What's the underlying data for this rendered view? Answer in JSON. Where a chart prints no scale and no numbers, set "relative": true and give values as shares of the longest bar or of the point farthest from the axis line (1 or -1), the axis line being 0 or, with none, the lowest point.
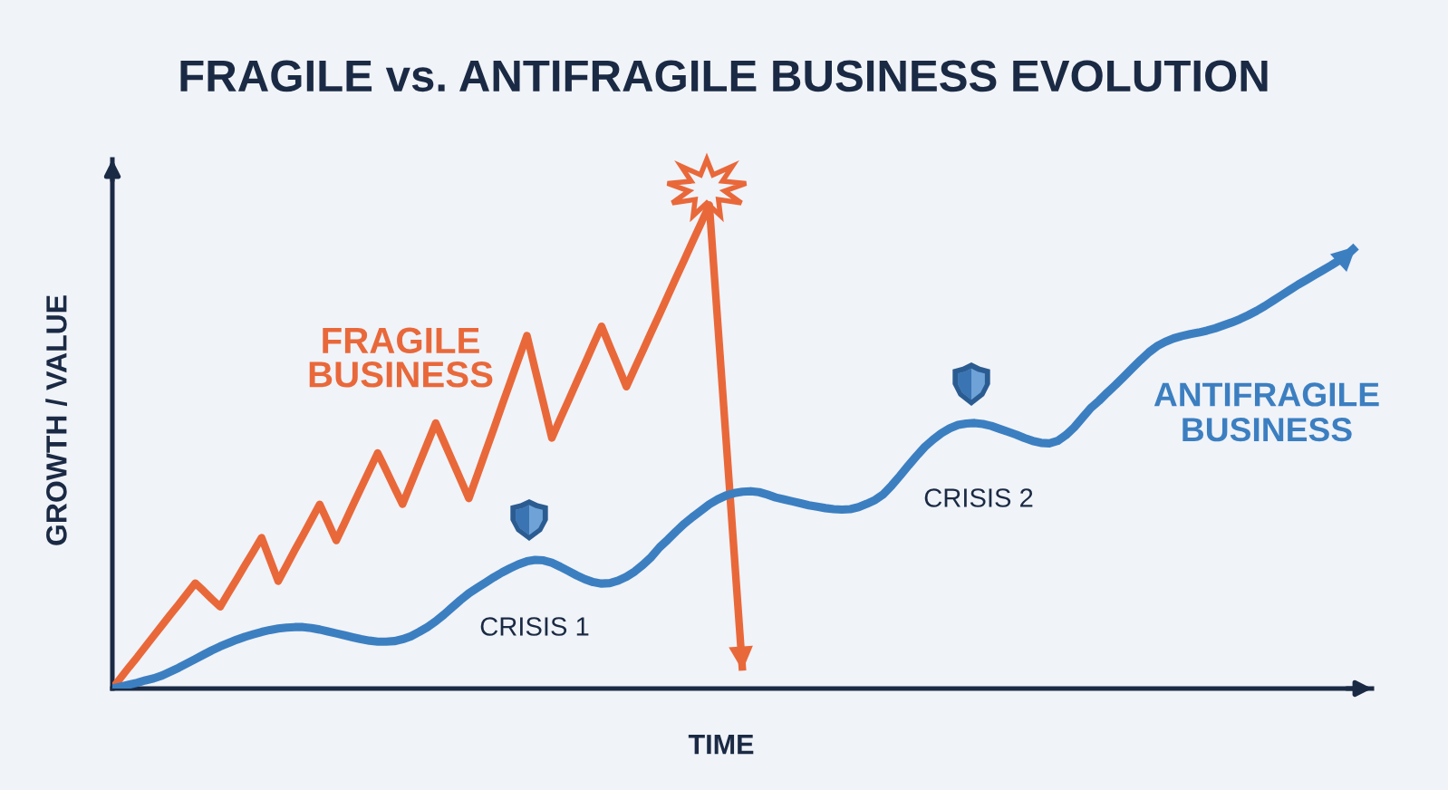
{
  "chart_data": {
    "type": "line",
    "title": "FRAGILE vs. ANTIFRAGILE BUSINESS EVOLUTION",
    "xlabel": "TIME",
    "ylabel": "GROWTH / VALUE",
    "relative": true,
    "categories": [
      null,
      null,
      null,
      null,
      null,
      null,
      null,
      null,
      null,
      null,
      null,
      null,
      null,
      null,
      null,
      null,
      null,
      null,
      null,
      null,
      null,
      null,
      null,
      null,
      null,
      null,
      null,
      null,
      null,
      null,
      null,
      null,
      null,
      null,
      null,
      null,
      null,
      null,
      null,
      null,
      null,
      null,
      null,
      null,
      null,
      null,
      null,
      null,
      null,
      null,
      null,
      null,
      null,
      null,
      null,
      null,
      null,
      null,
      null,
      null,
      null,
      null,
      null,
      null,
      null,
      null,
      null,
      null,
      null,
      null,
      null,
      null,
      null,
      null,
      null,
      null,
      null,
      null,
      null,
      null,
      null,
      null,
      null,
      null,
      null,
      null,
      null,
      null,
      null,
      null,
      null,
      null,
      null,
      null,
      null,
      null,
      null,
      null,
      null,
      null,
      null,
      null,
      null,
      null,
      null,
      null,
      null,
      null,
      null,
      null,
      null,
      null,
      null,
      null,
      null,
      null,
      null,
      null,
      null,
      null,
      null,
      null,
      null,
      null,
      null,
      null,
      null,
      null,
      null,
      null,
      null,
      null,
      null,
      null,
      null,
      null,
      null,
      null,
      null,
      null,
      null,
      null,
      null,
      null,
      null,
      null,
      null,
      null,
      null,
      null,
      null
    ],
    "series": [
      {
        "name": "FRAGILE\nBUSINESS",
        "color": "#e9683a",
        "values": [
          0,
          0.022,
          0.044,
          0.065,
          0.087,
          0.109,
          0.131,
          0.153,
          0.174,
          0.196,
          0.218,
          0.202,
          0.185,
          0.169,
          0.198,
          0.226,
          0.255,
          0.283,
          0.312,
          0.267,
          0.222,
          0.254,
          0.286,
          0.317,
          0.349,
          0.381,
          0.344,
          0.306,
          0.342,
          0.379,
          0.415,
          0.451,
          0.487,
          0.452,
          0.416,
          0.381,
          0.423,
          0.465,
          0.507,
          0.549,
          0.51,
          0.471,
          0.432,
          0.393,
          0.441,
          0.489,
          0.537,
          0.586,
          0.634,
          0.682,
          0.73,
          0.659,
          0.589,
          0.518,
          0.557,
          0.595,
          0.634,
          0.672,
          0.711,
          0.749,
          0.707,
          0.666,
          0.624,
          0.662,
          0.699,
          0.737,
          0.774,
          0.812,
          0.85,
          0.887,
          0.925,
          0.962,
          1.0,
          0.759,
          0.519,
          0.278,
          0.037,
          null,
          null,
          null,
          null,
          null,
          null,
          null,
          null,
          null,
          null,
          null,
          null,
          null,
          null,
          null,
          null,
          null,
          null,
          null,
          null,
          null,
          null,
          null,
          null,
          null,
          null,
          null,
          null,
          null,
          null,
          null,
          null,
          null,
          null,
          null,
          null,
          null,
          null,
          null,
          null,
          null,
          null,
          null,
          null,
          null,
          null,
          null,
          null,
          null,
          null,
          null,
          null,
          null,
          null,
          null,
          null,
          null,
          null,
          null,
          null,
          null,
          null,
          null,
          null,
          null,
          null,
          null,
          null,
          null,
          null,
          null,
          null,
          null,
          null
        ]
      },
      {
        "name": "ANTIFRAGILE\nBUSINESS",
        "color": "#3c7fc1",
        "values": [
          0.0,
          0.004,
          0.008,
          0.012,
          0.017,
          0.021,
          0.027,
          0.035,
          0.043,
          0.052,
          0.061,
          0.07,
          0.079,
          0.087,
          0.094,
          0.101,
          0.107,
          0.112,
          0.117,
          0.121,
          0.124,
          0.126,
          0.127,
          0.127,
          0.125,
          0.122,
          0.118,
          0.114,
          0.11,
          0.106,
          0.102,
          0.099,
          0.097,
          0.097,
          0.098,
          0.102,
          0.108,
          0.117,
          0.127,
          0.139,
          0.153,
          0.168,
          0.183,
          0.197,
          0.208,
          0.219,
          0.23,
          0.24,
          0.249,
          0.257,
          0.263,
          0.266,
          0.265,
          0.26,
          0.252,
          0.243,
          0.234,
          0.226,
          0.22,
          0.217,
          0.218,
          0.223,
          0.231,
          0.242,
          0.256,
          0.272,
          0.292,
          0.308,
          0.325,
          0.341,
          0.355,
          0.368,
          0.381,
          0.391,
          0.399,
          0.404,
          0.407,
          0.408,
          0.406,
          0.401,
          0.395,
          0.391,
          0.387,
          0.383,
          0.379,
          0.376,
          0.373,
          0.371,
          0.37,
          0.371,
          0.375,
          0.382,
          0.39,
          0.402,
          0.42,
          0.44,
          0.461,
          0.481,
          0.5,
          0.515,
          0.528,
          0.538,
          0.545,
          0.548,
          0.549,
          0.547,
          0.543,
          0.537,
          0.531,
          0.525,
          0.518,
          0.512,
          0.508,
          0.507,
          0.512,
          0.524,
          0.54,
          0.56,
          0.58,
          0.595,
          0.612,
          0.628,
          0.645,
          0.662,
          0.679,
          0.695,
          0.708,
          0.717,
          0.724,
          0.729,
          0.733,
          0.736,
          0.74,
          0.745,
          0.751,
          0.757,
          0.764,
          0.772,
          0.781,
          0.791,
          0.802,
          0.813,
          0.824,
          0.835,
          0.845,
          0.855,
          0.865,
          0.875,
          0.886,
          0.898,
          0.914
        ]
      }
    ],
    "annotations": [
      "CRISIS 1",
      "CRISIS 2"
    ]
  }
}
